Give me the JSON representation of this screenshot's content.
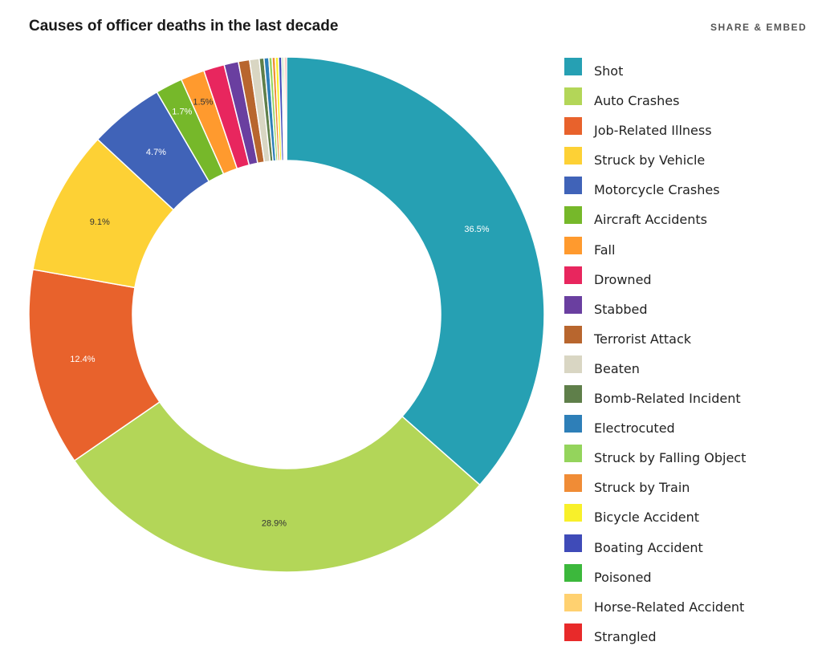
{
  "header": {
    "title": "Causes of officer deaths in the last decade",
    "share_label": "SHARE & EMBED"
  },
  "chart_data": {
    "type": "pie",
    "donut": true,
    "title": "Causes of officer deaths in the last decade",
    "legend_position": "right",
    "slices": [
      {
        "label": "Shot",
        "value": 36.5,
        "color": "#26a0b3",
        "show_label": "36.5%",
        "label_color": "#ffffff"
      },
      {
        "label": "Auto Crashes",
        "value": 28.9,
        "color": "#b3d658",
        "show_label": "28.9%",
        "label_color": "#333333"
      },
      {
        "label": "Job-Related Illness",
        "value": 12.4,
        "color": "#e8622c",
        "show_label": "12.4%",
        "label_color": "#ffffff"
      },
      {
        "label": "Struck by Vehicle",
        "value": 9.1,
        "color": "#fdd135",
        "show_label": "9.1%",
        "label_color": "#333333"
      },
      {
        "label": "Motorcycle Crashes",
        "value": 4.7,
        "color": "#4063b8",
        "show_label": "4.7%",
        "label_color": "#ffffff"
      },
      {
        "label": "Aircraft Accidents",
        "value": 1.7,
        "color": "#76b82a",
        "show_label": "1.7%",
        "label_color": "#ffffff"
      },
      {
        "label": "Fall",
        "value": 1.5,
        "color": "#ff9a2e",
        "show_label": "1.5%",
        "label_color": "#333333"
      },
      {
        "label": "Drowned",
        "value": 1.3,
        "color": "#e8265e",
        "show_label": "",
        "label_color": "#ffffff"
      },
      {
        "label": "Stabbed",
        "value": 0.9,
        "color": "#6a3fa0",
        "show_label": "",
        "label_color": "#ffffff"
      },
      {
        "label": "Terrorist Attack",
        "value": 0.7,
        "color": "#b8662e",
        "show_label": "",
        "label_color": "#ffffff"
      },
      {
        "label": "Beaten",
        "value": 0.6,
        "color": "#d9d6c3",
        "show_label": "",
        "label_color": "#333333"
      },
      {
        "label": "Bomb-Related Incident",
        "value": 0.3,
        "color": "#5f7f4a",
        "show_label": "",
        "label_color": "#ffffff"
      },
      {
        "label": "Electrocuted",
        "value": 0.3,
        "color": "#2e7fb8",
        "show_label": "",
        "label_color": "#ffffff"
      },
      {
        "label": "Struck by Falling Object",
        "value": 0.2,
        "color": "#94d45c",
        "show_label": "",
        "label_color": "#333333"
      },
      {
        "label": "Struck by Train",
        "value": 0.2,
        "color": "#f08c36",
        "show_label": "",
        "label_color": "#333333"
      },
      {
        "label": "Bicycle Accident",
        "value": 0.2,
        "color": "#f8f02a",
        "show_label": "",
        "label_color": "#333333"
      },
      {
        "label": "Boating Accident",
        "value": 0.2,
        "color": "#3f4bb8",
        "show_label": "",
        "label_color": "#ffffff"
      },
      {
        "label": "Poisoned",
        "value": 0.1,
        "color": "#3cb83c",
        "show_label": "",
        "label_color": "#ffffff"
      },
      {
        "label": "Horse-Related Accident",
        "value": 0.1,
        "color": "#ffd170",
        "show_label": "",
        "label_color": "#333333"
      },
      {
        "label": "Strangled",
        "value": 0.1,
        "color": "#e82a2a",
        "show_label": "",
        "label_color": "#ffffff"
      }
    ]
  }
}
